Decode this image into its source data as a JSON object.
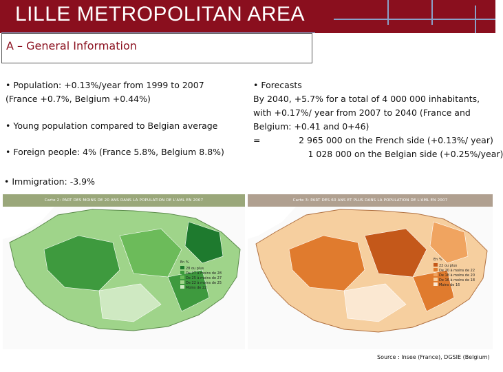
{
  "title": "LILLE METROPOLITAN AREA",
  "section": {
    "heading": "A – General Information"
  },
  "left_bullets": [
    {
      "line1": "•  Population: +0.13%/year from 1999 to 2007",
      "line2": "(France +0.7%, Belgium +0.44%)"
    },
    {
      "line1": "•  Young population compared to Belgian average"
    },
    {
      "line1": "•  Foreign people: 4% (France 5.8%, Belgium 8.8%)"
    },
    {
      "line1": "•  Immigration: -3.9%"
    }
  ],
  "forecasts": {
    "heading": "•  Forecasts",
    "lines": [
      "By 2040, +5.7% for a total of 4 000 000 inhabitants,",
      "with +0.17%/ year from 2007 to 2040 (France and",
      "Belgium: +0.41 and 0+46)",
      "=              2 965 000 on the French side (+0.13%/ year)",
      "                    1 028 000 on the Belgian side (+0.25%/year)"
    ]
  },
  "maps": [
    {
      "header": "Carte 2: PART DES MOINS DE 20 ANS DANS LA POPULATION DE L'AML EN 2007",
      "header_color": "#9aa77a",
      "palette": [
        "#1e7a2e",
        "#3e9a3e",
        "#6cbb5a",
        "#9fd48a",
        "#cfe9c2"
      ],
      "legend_title": "En %",
      "legend_items": [
        "28 ou plus",
        "De 27 à moins de 28",
        "De 25 à moins de 27",
        "De 22 à moins de 25",
        "Moins de 22"
      ]
    },
    {
      "header": "Carte 3: PART DES 60 ANS ET PLUS DANS LA POPULATION DE L'AML EN 2007",
      "header_color": "#b0a090",
      "palette": [
        "#c4581a",
        "#e07b2e",
        "#f0a460",
        "#f6cf9f",
        "#fbe8d2"
      ],
      "legend_title": "En %",
      "legend_items": [
        "22 ou plus",
        "De 20 à moins de 22",
        "De 18 à moins de 20",
        "De 16 à moins de 18",
        "Moins de 16"
      ]
    }
  ],
  "source": "Source : Insee (France), DGSIE (Belgium)"
}
